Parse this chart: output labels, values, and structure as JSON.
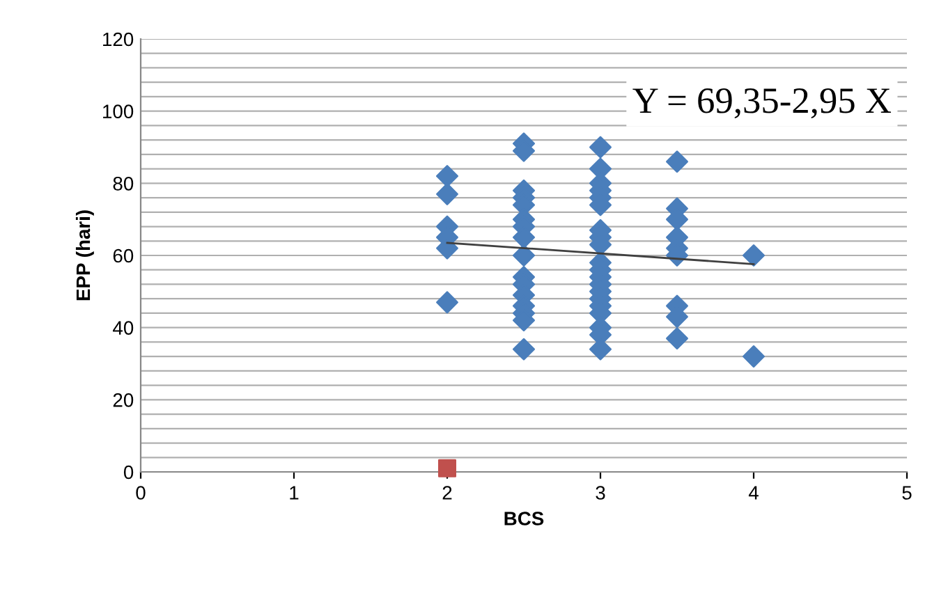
{
  "chart_data": {
    "type": "scatter",
    "xlabel": "BCS",
    "ylabel": "EPP (hari)",
    "annotations": [
      "Y = 69,35-2,95 X"
    ],
    "grid": "y",
    "legend": false,
    "xlim": [
      0,
      5
    ],
    "xticks": [
      0,
      1,
      2,
      3,
      4,
      5
    ],
    "ylim": [
      0,
      120
    ],
    "yticks": [
      0,
      {
        "value": 4,
        "label": null
      },
      {
        "value": 8,
        "label": null
      },
      {
        "value": 12,
        "label": null
      },
      {
        "value": 16,
        "label": null
      },
      20,
      {
        "value": 24,
        "label": null
      },
      {
        "value": 28,
        "label": null
      },
      {
        "value": 32,
        "label": null
      },
      {
        "value": 36,
        "label": null
      },
      40,
      {
        "value": 44,
        "label": null
      },
      {
        "value": 48,
        "label": null
      },
      {
        "value": 52,
        "label": null
      },
      {
        "value": 56,
        "label": null
      },
      60,
      {
        "value": 64,
        "label": null
      },
      {
        "value": 68,
        "label": null
      },
      {
        "value": 72,
        "label": null
      },
      {
        "value": 76,
        "label": null
      },
      80,
      {
        "value": 84,
        "label": null
      },
      {
        "value": 88,
        "label": null
      },
      {
        "value": 92,
        "label": null
      },
      {
        "value": 96,
        "label": null
      },
      100,
      {
        "value": 104,
        "label": null
      },
      {
        "value": 108,
        "label": null
      },
      {
        "value": 112,
        "label": null
      },
      {
        "value": 116,
        "label": null
      },
      120
    ],
    "series": [
      {
        "color": "#4a7ebb",
        "marker": "diamond",
        "x": [
          2,
          2,
          2,
          2,
          2,
          2,
          2.5,
          2.5,
          2.5,
          2.5,
          2.5,
          2.5,
          2.5,
          2.5,
          2.5,
          2.5,
          2.5,
          2.5,
          2.5,
          2.5,
          2.5,
          2.5,
          3,
          3,
          3,
          3,
          3,
          3,
          3,
          3,
          3,
          3,
          3,
          3,
          3,
          3,
          3,
          3,
          3,
          3,
          3,
          3,
          3.5,
          3.5,
          3.5,
          3.5,
          3.5,
          3.5,
          3.5,
          3.5,
          3.5,
          4,
          4
        ],
        "values": [
          82,
          77,
          68,
          65,
          62,
          47,
          91,
          89,
          78,
          76,
          74,
          70,
          68,
          65,
          60,
          54,
          52,
          49,
          46,
          44,
          42,
          34,
          90,
          84,
          80,
          78,
          76,
          74,
          67,
          65,
          63,
          58,
          56,
          54,
          52,
          50,
          48,
          46,
          44,
          40,
          38,
          34,
          86,
          73,
          70,
          65,
          62,
          60,
          46,
          43,
          37,
          60,
          32
        ]
      },
      {
        "color": "#c0504d",
        "marker": "square",
        "x": [
          2
        ],
        "values": [
          1
        ]
      },
      {
        "type": "line",
        "color": "#404040",
        "marker": "none",
        "x": [
          2,
          4
        ],
        "values": [
          63.5,
          57.6
        ]
      }
    ]
  }
}
